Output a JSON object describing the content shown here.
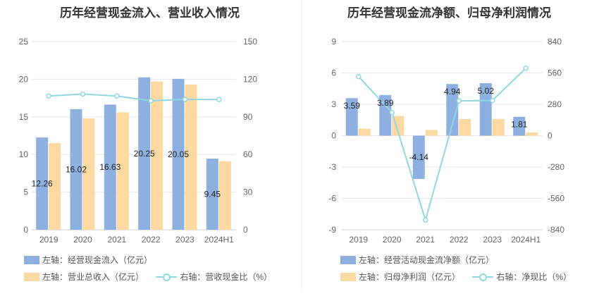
{
  "chart_data": [
    {
      "type": "bar",
      "title": "历年经营现金流入、营业收入情况",
      "categories": [
        "2019",
        "2020",
        "2021",
        "2022",
        "2023",
        "2024H1"
      ],
      "series": [
        {
          "name": "左轴：经营现金流入（亿元）",
          "kind": "bar",
          "axis": "left",
          "color": "#8eb0e0",
          "values": [
            12.26,
            16.02,
            16.63,
            20.25,
            20.05,
            9.45
          ],
          "labels": [
            "12.26",
            "16.02",
            "16.63",
            "20.25",
            "20.05",
            "9.45"
          ]
        },
        {
          "name": "左轴：营业总收入（亿元）",
          "kind": "bar",
          "axis": "left",
          "color": "#fcd9a0",
          "values": [
            11.5,
            14.8,
            15.6,
            19.7,
            19.3,
            9.1
          ]
        },
        {
          "name": "右轴：营收现金比（%）",
          "kind": "line",
          "axis": "right",
          "color": "#8fd8df",
          "values": [
            106.6,
            108.2,
            106.6,
            102.8,
            103.9,
            103.8
          ]
        }
      ],
      "y_left": {
        "ticks": [
          "0",
          "5",
          "10",
          "15",
          "20",
          "25"
        ],
        "ylim": [
          0,
          25
        ]
      },
      "y_right": {
        "ticks": [
          "0",
          "30",
          "60",
          "90",
          "120",
          "150"
        ],
        "ylim": [
          0,
          150
        ]
      }
    },
    {
      "type": "bar",
      "title": "历年经营现金流净额、归母净利润情况",
      "categories": [
        "2019",
        "2020",
        "2021",
        "2022",
        "2023",
        "2024H1"
      ],
      "series": [
        {
          "name": "左轴：经营活动现金流净额（亿元）",
          "kind": "bar",
          "axis": "left",
          "color": "#8eb0e0",
          "values": [
            3.59,
            3.89,
            -4.14,
            4.94,
            5.02,
            1.81
          ],
          "labels": [
            "3.59",
            "3.89",
            "-4.14",
            "4.94",
            "5.02",
            "1.81"
          ]
        },
        {
          "name": "左轴：归母净利润（亿元）",
          "kind": "bar",
          "axis": "left",
          "color": "#fcd9a0",
          "values": [
            0.68,
            1.88,
            0.55,
            1.59,
            1.6,
            0.3
          ]
        },
        {
          "name": "右轴：净现比（%）",
          "kind": "line",
          "axis": "right",
          "color": "#8fd8df",
          "values": [
            528,
            207,
            -753,
            311,
            314,
            603
          ]
        }
      ],
      "y_left": {
        "ticks": [
          "-9",
          "-6",
          "-3",
          "0",
          "3",
          "6",
          "9"
        ],
        "ylim": [
          -9,
          9
        ]
      },
      "y_right": {
        "ticks": [
          "-840",
          "-560",
          "-280",
          "0",
          "280",
          "560",
          "840"
        ],
        "ylim": [
          -840,
          840
        ]
      }
    }
  ]
}
